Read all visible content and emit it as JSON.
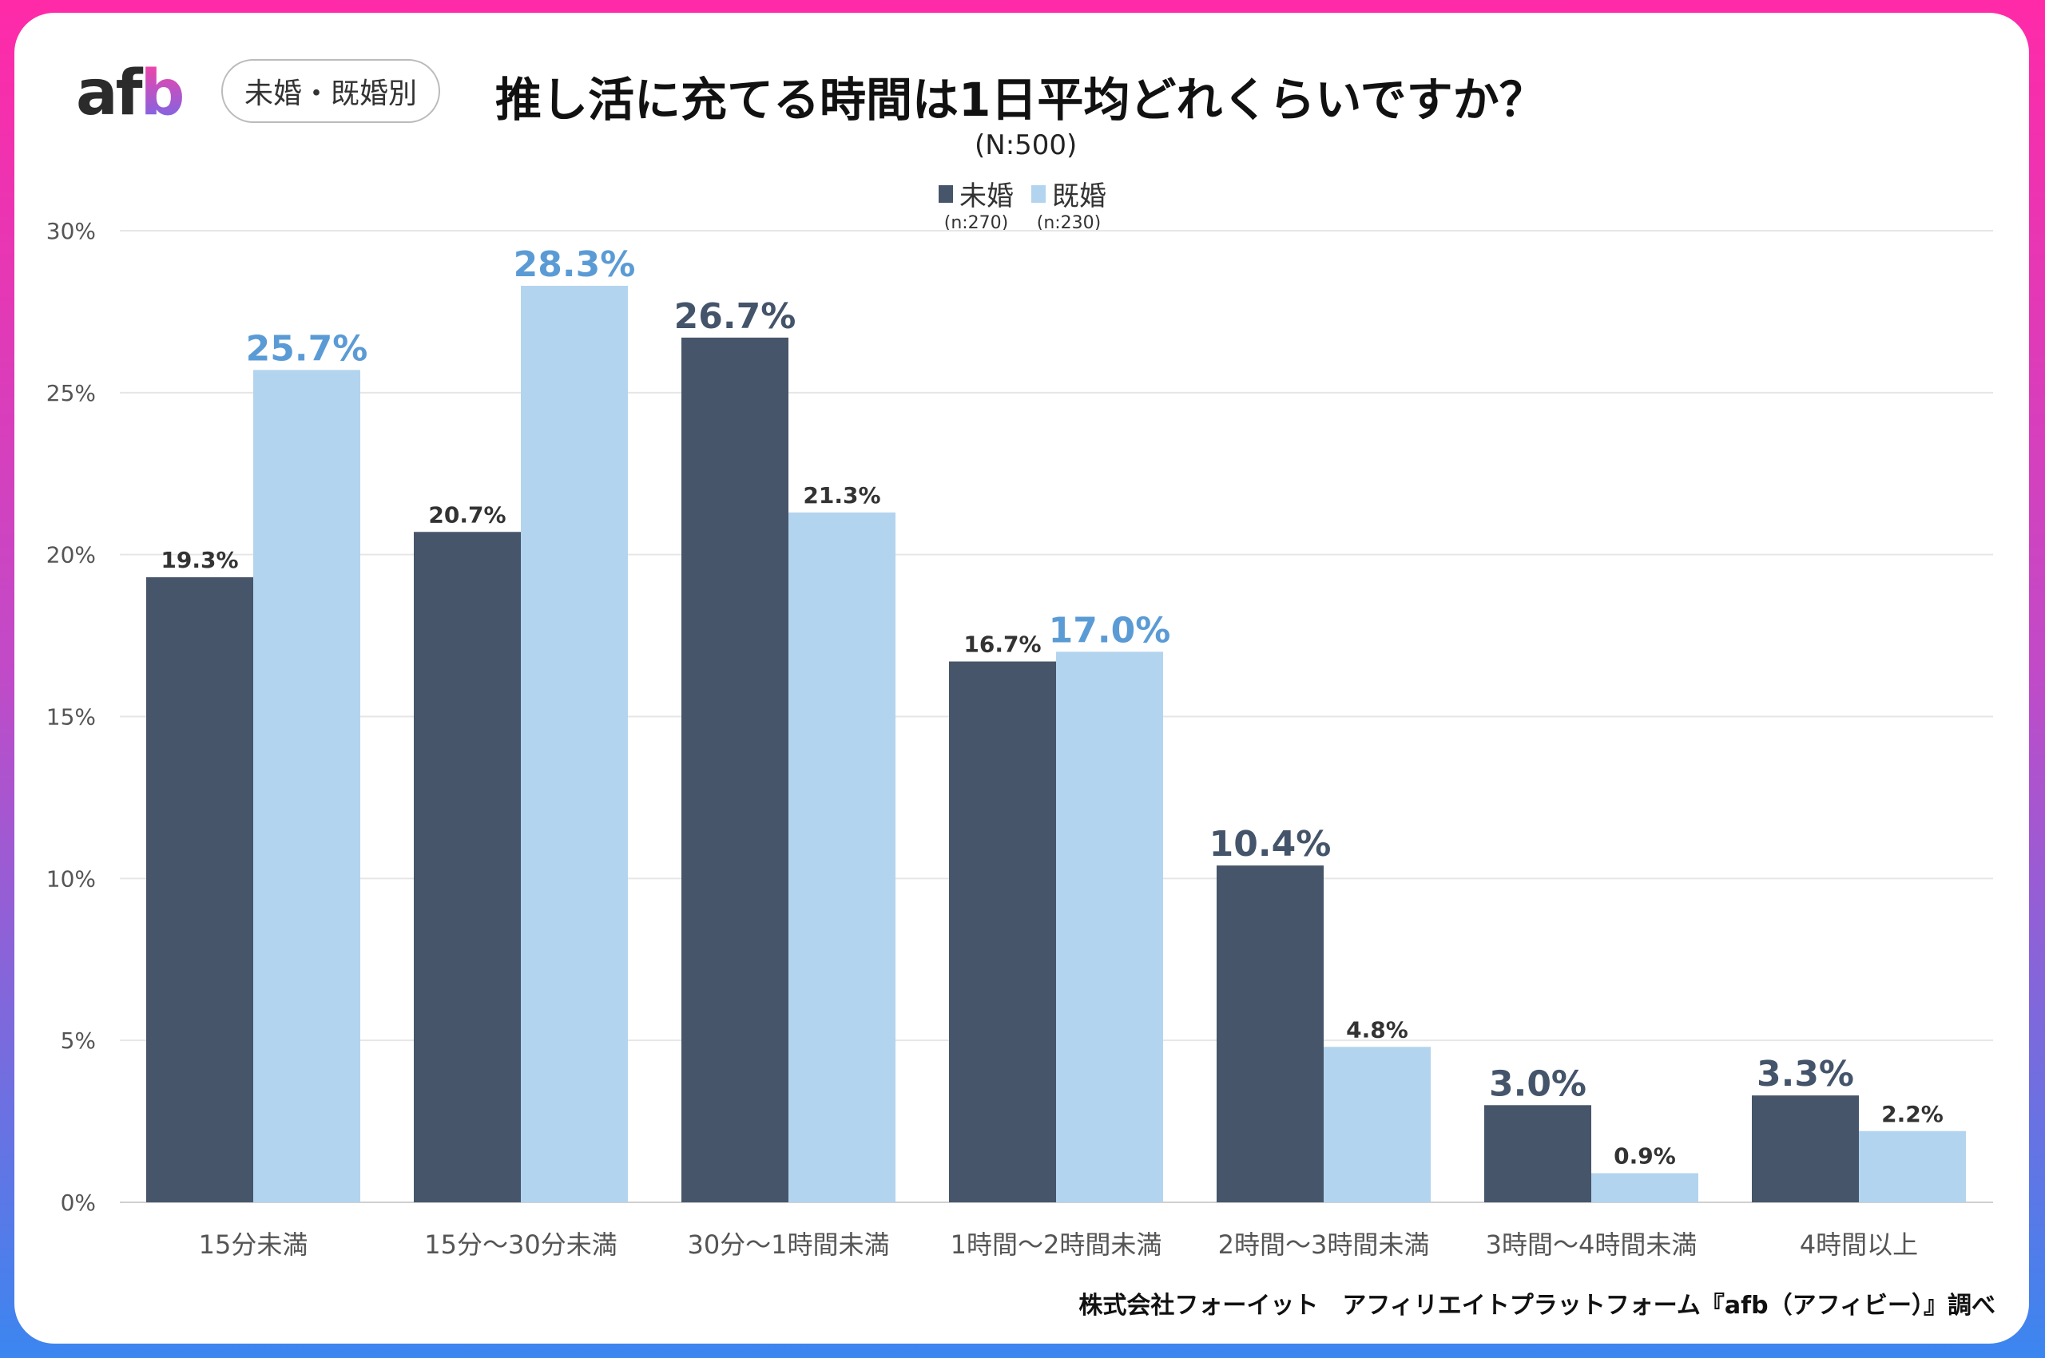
{
  "logo": "afb",
  "badge": "未婚・既婚別",
  "colors": {
    "unmarried": "#465569",
    "married": "#b3d4ee",
    "unmarried_label": "#44546a",
    "married_label": "#5b9bd5"
  },
  "chart_data": {
    "type": "bar",
    "title": "推し活に充てる時間は1日平均どれくらいですか？",
    "subtitle": "(N:500)",
    "categories": [
      "15分未満",
      "15分～30分未満",
      "30分～1時間未満",
      "1時間～2時間未満",
      "2時間～3時間未満",
      "3時間～4時間未満",
      "4時間以上"
    ],
    "series": [
      {
        "name": "未婚",
        "note": "(n:270)",
        "values": [
          19.3,
          20.7,
          26.7,
          16.7,
          10.4,
          3.0,
          3.3
        ]
      },
      {
        "name": "既婚",
        "note": "(n:230)",
        "values": [
          25.7,
          28.3,
          21.3,
          17.0,
          4.8,
          0.9,
          2.2
        ]
      }
    ],
    "yticks": [
      "0%",
      "5%",
      "10%",
      "15%",
      "20%",
      "25%",
      "30%"
    ],
    "ylim": [
      0,
      30
    ],
    "grid": true,
    "legend": "top-center"
  },
  "footer": "株式会社フォーイット　アフィリエイトプラットフォーム『afb（アフィビー）』調べ"
}
